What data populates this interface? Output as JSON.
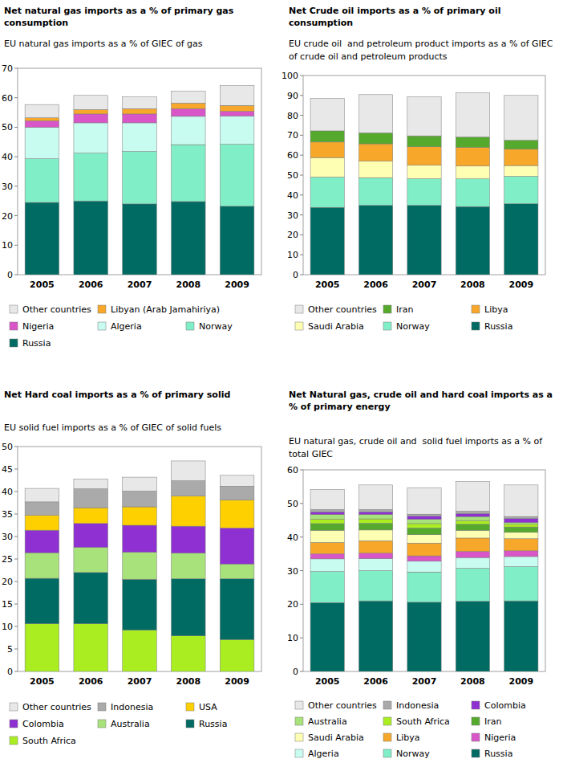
{
  "chart_data": [
    {
      "type": "bar",
      "stacked": true,
      "grid": false,
      "legend": "bottom",
      "title": "Net natural gas imports as a % of primary gas consumption",
      "subtitle": "EU natural gas imports as a % of GIEC of gas",
      "categories": [
        "2005",
        "2006",
        "2007",
        "2008",
        "2009"
      ],
      "ylim": [
        0,
        70
      ],
      "yticks": [
        0,
        10,
        20,
        30,
        40,
        50,
        60,
        70
      ],
      "series": [
        {
          "name": "Russia",
          "color": "#006b63",
          "values": [
            24.5,
            25.0,
            24.0,
            24.8,
            23.2
          ]
        },
        {
          "name": "Norway",
          "color": "#80eec6",
          "values": [
            14.8,
            16.2,
            17.8,
            19.3,
            21.0
          ]
        },
        {
          "name": "Algeria",
          "color": "#c8fcf0",
          "values": [
            10.7,
            10.3,
            9.7,
            9.6,
            9.6
          ]
        },
        {
          "name": "Nigeria",
          "color": "#d956c8",
          "values": [
            2.2,
            3.0,
            3.0,
            2.6,
            1.6
          ]
        },
        {
          "name": "Libyan (Arab Jamahiriya)",
          "color": "#f7a82a",
          "values": [
            1.0,
            1.5,
            1.8,
            1.9,
            2.0
          ]
        },
        {
          "name": "Other countries",
          "color": "#e8e8e8",
          "values": [
            4.5,
            4.8,
            4.0,
            4.0,
            6.7
          ]
        }
      ]
    },
    {
      "type": "bar",
      "stacked": true,
      "grid": false,
      "legend": "bottom",
      "title": "Net Crude oil imports as a % of primary oil consumption",
      "subtitle": "EU crude oil  and petroleum product imports as a % of GIEC of crude oil and petroleum products",
      "categories": [
        "2005",
        "2006",
        "2007",
        "2008",
        "2009"
      ],
      "ylim": [
        0,
        100
      ],
      "yticks": [
        0,
        10,
        20,
        30,
        40,
        50,
        60,
        70,
        80,
        90,
        100
      ],
      "series": [
        {
          "name": "Russia",
          "color": "#006b63",
          "values": [
            33.8,
            34.8,
            34.8,
            34.2,
            35.6
          ]
        },
        {
          "name": "Norway",
          "color": "#80eec6",
          "values": [
            15.2,
            13.9,
            13.4,
            13.9,
            13.8
          ]
        },
        {
          "name": "Saudi Arabia",
          "color": "#ffffb4",
          "values": [
            9.8,
            8.3,
            6.8,
            6.5,
            5.4
          ]
        },
        {
          "name": "Libya",
          "color": "#f7a82a",
          "values": [
            7.8,
            8.7,
            9.2,
            9.4,
            8.2
          ]
        },
        {
          "name": "Iran",
          "color": "#55a92c",
          "values": [
            5.6,
            5.5,
            5.5,
            5.1,
            4.5
          ]
        },
        {
          "name": "Other countries",
          "color": "#e8e8e8",
          "values": [
            16.3,
            19.2,
            19.6,
            22.2,
            22.5
          ]
        }
      ]
    },
    {
      "type": "bar",
      "stacked": true,
      "grid": false,
      "legend": "bottom",
      "title": "Net Hard coal imports as a % of primary solid",
      "subtitle": "EU solid fuel imports as a % of GIEC of solid fuels",
      "categories": [
        "2005",
        "2006",
        "2007",
        "2008",
        "2009"
      ],
      "ylim": [
        0,
        50
      ],
      "yticks": [
        0,
        5,
        10,
        15,
        20,
        25,
        30,
        35,
        40,
        45,
        50
      ],
      "series": [
        {
          "name": "South Africa",
          "color": "#aaee22",
          "values": [
            10.6,
            10.6,
            9.2,
            7.9,
            7.1
          ]
        },
        {
          "name": "Russia",
          "color": "#006b63",
          "values": [
            10.1,
            11.4,
            11.3,
            12.7,
            13.5
          ]
        },
        {
          "name": "Australia",
          "color": "#a8e27a",
          "values": [
            5.7,
            5.6,
            6.0,
            5.7,
            3.3
          ]
        },
        {
          "name": "Colombia",
          "color": "#8e30d2",
          "values": [
            5.0,
            5.3,
            6.0,
            6.0,
            8.0
          ]
        },
        {
          "name": "USA",
          "color": "#ffd000",
          "values": [
            3.3,
            3.5,
            4.1,
            6.7,
            6.2
          ]
        },
        {
          "name": "Indonesia",
          "color": "#aaaaaa",
          "values": [
            3.0,
            4.2,
            3.5,
            3.4,
            3.1
          ]
        },
        {
          "name": "Other countries",
          "color": "#e8e8e8",
          "values": [
            3.0,
            2.2,
            3.1,
            4.4,
            2.4
          ]
        }
      ]
    },
    {
      "type": "bar",
      "stacked": true,
      "grid": false,
      "legend": "bottom",
      "title": "Net Natural gas, crude oil and hard coal imports as a % of primary energy",
      "subtitle": "EU natural gas, crude oil and  solid fuel imports as a % of total GIEC",
      "categories": [
        "2005",
        "2006",
        "2007",
        "2008",
        "2009"
      ],
      "ylim": [
        0,
        60
      ],
      "yticks": [
        0,
        10,
        20,
        30,
        40,
        50,
        60
      ],
      "series": [
        {
          "name": "Russia",
          "color": "#006b63",
          "values": [
            20.5,
            21.0,
            20.6,
            20.9,
            21.0
          ]
        },
        {
          "name": "Norway",
          "color": "#80eec6",
          "values": [
            9.2,
            9.0,
            9.0,
            9.8,
            10.2
          ]
        },
        {
          "name": "Algeria",
          "color": "#c8fcf0",
          "values": [
            3.8,
            3.6,
            3.2,
            3.2,
            3.0
          ]
        },
        {
          "name": "Nigeria",
          "color": "#d956c8",
          "values": [
            1.5,
            1.6,
            1.6,
            1.8,
            1.7
          ]
        },
        {
          "name": "Libya",
          "color": "#f7a82a",
          "values": [
            3.4,
            3.7,
            3.8,
            4.0,
            3.6
          ]
        },
        {
          "name": "Saudi Arabia",
          "color": "#ffffb4",
          "values": [
            3.6,
            3.2,
            2.5,
            2.3,
            1.9
          ]
        },
        {
          "name": "Iran",
          "color": "#55a92c",
          "values": [
            2.0,
            2.0,
            2.0,
            1.8,
            1.6
          ]
        },
        {
          "name": "South Africa",
          "color": "#aaee22",
          "values": [
            1.3,
            1.3,
            1.3,
            1.1,
            0.8
          ]
        },
        {
          "name": "Australia",
          "color": "#a8e27a",
          "values": [
            1.4,
            1.3,
            1.3,
            1.2,
            0.5
          ]
        },
        {
          "name": "Colombia",
          "color": "#8e30d2",
          "values": [
            0.8,
            0.8,
            0.9,
            0.9,
            1.2
          ]
        },
        {
          "name": "Indonesia",
          "color": "#aaaaaa",
          "values": [
            0.7,
            0.7,
            0.6,
            0.7,
            0.6
          ]
        },
        {
          "name": "Other countries",
          "color": "#e8e8e8",
          "values": [
            6.0,
            7.3,
            7.9,
            8.8,
            9.4
          ]
        }
      ]
    }
  ]
}
